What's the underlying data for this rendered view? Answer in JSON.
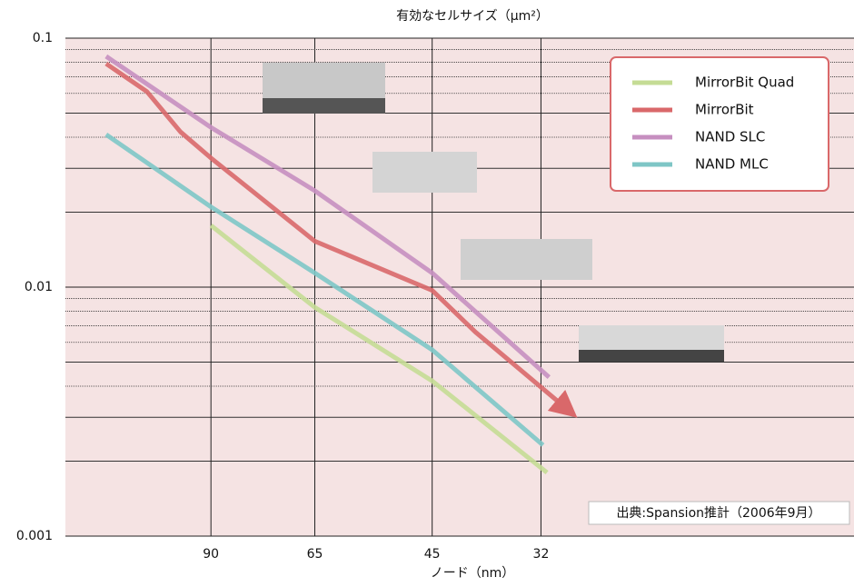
{
  "chart_data": {
    "type": "line",
    "title": "有効なセルサイズ（μm²）",
    "x_label": "ノード（nm）",
    "source": "出典:Spansion推計（2006年9月）",
    "xscale": "log",
    "yscale": "log",
    "xlim": [
      142,
      12
    ],
    "xticks": [
      90,
      65,
      45,
      32
    ],
    "ylim": [
      0.001,
      0.1
    ],
    "yticks": [
      0.1,
      0.01,
      0.001
    ],
    "grid": true,
    "series": [
      {
        "name": "MirrorBit Quad",
        "color": "#c5dc95",
        "x": [
          90,
          65,
          45,
          31.4
        ],
        "values": [
          0.0177,
          0.0083,
          0.0042,
          0.0018
        ]
      },
      {
        "name": "MirrorBit",
        "color": "#d9686a",
        "x": [
          125,
          110,
          99,
          90,
          65,
          45,
          39.3,
          29.5
        ],
        "values": [
          0.079,
          0.061,
          0.042,
          0.033,
          0.0153,
          0.0097,
          0.0066,
          0.00324
        ]
      },
      {
        "name": "NAND SLC",
        "color": "#c68fc0",
        "x": [
          125,
          90,
          65,
          45,
          31.2
        ],
        "values": [
          0.0845,
          0.0438,
          0.0244,
          0.0114,
          0.00435
        ]
      },
      {
        "name": "NAND MLC",
        "color": "#7ec6c6",
        "x": [
          125,
          90,
          65,
          45,
          31.8
        ],
        "values": [
          0.041,
          0.021,
          0.0114,
          0.0056,
          0.00232
        ]
      }
    ]
  }
}
